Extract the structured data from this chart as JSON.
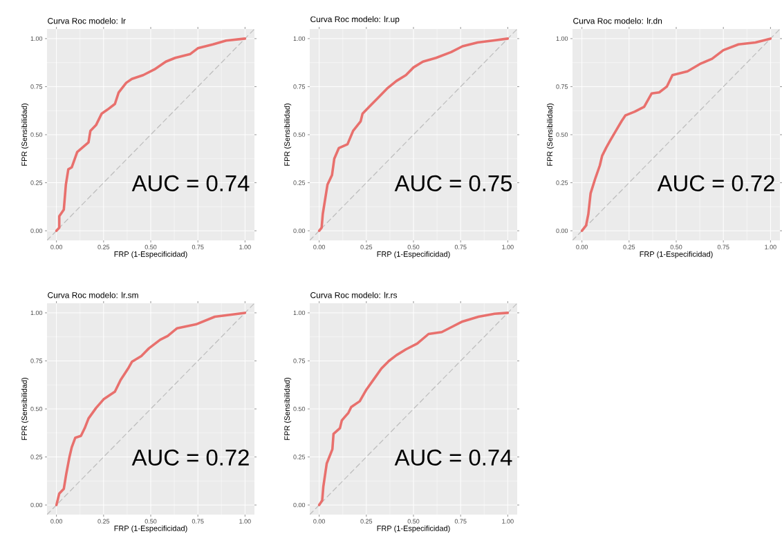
{
  "chart_data": [
    {
      "type": "line",
      "title": "Curva Roc modelo: lr",
      "xlabel": "FRP (1-Especificidad)",
      "ylabel": "FPR (Sensibilidad)",
      "annotations": [
        "AUC = 0.74"
      ],
      "xlim": [
        -0.05,
        1.05
      ],
      "ylim": [
        -0.05,
        1.05
      ],
      "grid": true,
      "xticks": [
        {
          "value": 0,
          "label": "0.00"
        },
        {
          "value": 0.25,
          "label": "0.25"
        },
        {
          "value": 0.5,
          "label": "0.50"
        },
        {
          "value": 0.75,
          "label": "0.75"
        },
        {
          "value": 1,
          "label": "1.00"
        }
      ],
      "yticks": [
        {
          "value": 0,
          "label": "0.00"
        },
        {
          "value": 0.25,
          "label": "0.25"
        },
        {
          "value": 0.5,
          "label": "0.50"
        },
        {
          "value": 0.75,
          "label": "0.75"
        },
        {
          "value": 1,
          "label": "1.00"
        }
      ],
      "series": [
        {
          "color": "#bebebe",
          "line_style": "dashed",
          "x": [
            -0.05,
            1.05
          ],
          "values": [
            -0.05,
            1.05
          ]
        },
        {
          "color": "#e8706d",
          "line_style": "solid",
          "x": [
            0,
            0.015,
            0.015,
            0.039,
            0.05,
            0.063,
            0.081,
            0.11,
            0.17,
            0.18,
            0.21,
            0.24,
            0.27,
            0.31,
            0.33,
            0.37,
            0.4,
            0.46,
            0.52,
            0.58,
            0.63,
            0.71,
            0.75,
            0.83,
            0.9,
            1
          ],
          "values": [
            0,
            0.016,
            0.076,
            0.11,
            0.24,
            0.32,
            0.33,
            0.41,
            0.46,
            0.52,
            0.55,
            0.61,
            0.63,
            0.66,
            0.72,
            0.77,
            0.79,
            0.81,
            0.84,
            0.88,
            0.9,
            0.92,
            0.95,
            0.97,
            0.99,
            1
          ]
        }
      ]
    },
    {
      "type": "line",
      "title": "Curva Roc modelo: lr.up",
      "xlabel": "FRP (1-Especificidad)",
      "ylabel": "FPR (Sensibilidad)",
      "annotations": [
        "AUC = 0.75"
      ],
      "xlim": [
        -0.05,
        1.05
      ],
      "ylim": [
        -0.05,
        1.05
      ],
      "grid": true,
      "xticks": [
        {
          "value": 0,
          "label": "0.00"
        },
        {
          "value": 0.25,
          "label": "0.25"
        },
        {
          "value": 0.5,
          "label": "0.50"
        },
        {
          "value": 0.75,
          "label": "0.75"
        },
        {
          "value": 1,
          "label": "1.00"
        }
      ],
      "yticks": [
        {
          "value": 0,
          "label": "0.00"
        },
        {
          "value": 0.25,
          "label": "0.25"
        },
        {
          "value": 0.5,
          "label": "0.50"
        },
        {
          "value": 0.75,
          "label": "0.75"
        },
        {
          "value": 1,
          "label": "1.00"
        }
      ],
      "series": [
        {
          "color": "#bebebe",
          "line_style": "dashed",
          "x": [
            -0.05,
            1.05
          ],
          "values": [
            -0.05,
            1.05
          ]
        },
        {
          "color": "#e8706d",
          "line_style": "solid",
          "x": [
            0,
            0.013,
            0.019,
            0.044,
            0.068,
            0.08,
            0.104,
            0.15,
            0.18,
            0.22,
            0.23,
            0.27,
            0.31,
            0.36,
            0.41,
            0.46,
            0.5,
            0.55,
            0.62,
            0.7,
            0.76,
            0.84,
            0.92,
            1
          ],
          "values": [
            0,
            0.016,
            0.087,
            0.24,
            0.29,
            0.375,
            0.43,
            0.45,
            0.52,
            0.57,
            0.61,
            0.65,
            0.69,
            0.74,
            0.78,
            0.81,
            0.85,
            0.88,
            0.9,
            0.93,
            0.96,
            0.98,
            0.99,
            1
          ]
        }
      ]
    },
    {
      "type": "line",
      "title": "Curva Roc modelo: lr.dn",
      "xlabel": "FRP (1-Especificidad)",
      "ylabel": "FPR (Sensibilidad)",
      "annotations": [
        "AUC = 0.72"
      ],
      "xlim": [
        -0.05,
        1.05
      ],
      "ylim": [
        -0.05,
        1.05
      ],
      "grid": true,
      "xticks": [
        {
          "value": 0,
          "label": "0.00"
        },
        {
          "value": 0.25,
          "label": "0.25"
        },
        {
          "value": 0.5,
          "label": "0.50"
        },
        {
          "value": 0.75,
          "label": "0.75"
        },
        {
          "value": 1,
          "label": "1.00"
        }
      ],
      "yticks": [
        {
          "value": 0,
          "label": "0.00"
        },
        {
          "value": 0.25,
          "label": "0.25"
        },
        {
          "value": 0.5,
          "label": "0.50"
        },
        {
          "value": 0.75,
          "label": "0.75"
        },
        {
          "value": 1,
          "label": "1.00"
        }
      ],
      "series": [
        {
          "color": "#bebebe",
          "line_style": "dashed",
          "x": [
            -0.05,
            1.05
          ],
          "values": [
            -0.05,
            1.05
          ]
        },
        {
          "color": "#e8706d",
          "line_style": "solid",
          "x": [
            0,
            0.022,
            0.034,
            0.046,
            0.07,
            0.095,
            0.107,
            0.13,
            0.15,
            0.18,
            0.21,
            0.23,
            0.28,
            0.33,
            0.37,
            0.41,
            0.45,
            0.48,
            0.56,
            0.63,
            0.69,
            0.75,
            0.83,
            0.92,
            1
          ],
          "values": [
            0,
            0.028,
            0.087,
            0.195,
            0.27,
            0.34,
            0.39,
            0.435,
            0.47,
            0.52,
            0.57,
            0.6,
            0.62,
            0.645,
            0.715,
            0.72,
            0.75,
            0.81,
            0.83,
            0.87,
            0.895,
            0.94,
            0.97,
            0.98,
            1
          ]
        }
      ]
    },
    {
      "type": "line",
      "title": "Curva Roc modelo: lr.sm",
      "xlabel": "FRP (1-Especificidad)",
      "ylabel": "FPR (Sensibilidad)",
      "annotations": [
        "AUC = 0.72"
      ],
      "xlim": [
        -0.05,
        1.05
      ],
      "ylim": [
        -0.05,
        1.05
      ],
      "grid": true,
      "xticks": [
        {
          "value": 0,
          "label": "0.00"
        },
        {
          "value": 0.25,
          "label": "0.25"
        },
        {
          "value": 0.5,
          "label": "0.50"
        },
        {
          "value": 0.75,
          "label": "0.75"
        },
        {
          "value": 1,
          "label": "1.00"
        }
      ],
      "yticks": [
        {
          "value": 0,
          "label": "0.00"
        },
        {
          "value": 0.25,
          "label": "0.25"
        },
        {
          "value": 0.5,
          "label": "0.50"
        },
        {
          "value": 0.75,
          "label": "0.75"
        },
        {
          "value": 1,
          "label": "1.00"
        }
      ],
      "series": [
        {
          "color": "#bebebe",
          "line_style": "dashed",
          "x": [
            -0.05,
            1.05
          ],
          "values": [
            -0.05,
            1.05
          ]
        },
        {
          "color": "#e8706d",
          "line_style": "solid",
          "x": [
            0,
            0.015,
            0.039,
            0.051,
            0.069,
            0.081,
            0.1,
            0.13,
            0.15,
            0.17,
            0.21,
            0.25,
            0.31,
            0.34,
            0.38,
            0.4,
            0.45,
            0.49,
            0.55,
            0.59,
            0.64,
            0.74,
            0.84,
            1
          ],
          "values": [
            0,
            0.06,
            0.084,
            0.156,
            0.25,
            0.3,
            0.35,
            0.36,
            0.4,
            0.45,
            0.505,
            0.55,
            0.59,
            0.65,
            0.71,
            0.745,
            0.775,
            0.815,
            0.86,
            0.88,
            0.92,
            0.94,
            0.98,
            1
          ]
        }
      ]
    },
    {
      "type": "line",
      "title": "Curva Roc modelo: lr.rs",
      "xlabel": "FRP (1-Especificidad)",
      "ylabel": "FPR (Sensibilidad)",
      "annotations": [
        "AUC = 0.74"
      ],
      "xlim": [
        -0.05,
        1.05
      ],
      "ylim": [
        -0.05,
        1.05
      ],
      "grid": true,
      "xticks": [
        {
          "value": 0,
          "label": "0.00"
        },
        {
          "value": 0.25,
          "label": "0.25"
        },
        {
          "value": 0.5,
          "label": "0.50"
        },
        {
          "value": 0.75,
          "label": "0.75"
        },
        {
          "value": 1,
          "label": "1.00"
        }
      ],
      "yticks": [
        {
          "value": 0,
          "label": "0.00"
        },
        {
          "value": 0.25,
          "label": "0.25"
        },
        {
          "value": 0.5,
          "label": "0.50"
        },
        {
          "value": 0.75,
          "label": "0.75"
        },
        {
          "value": 1,
          "label": "1.00"
        }
      ],
      "series": [
        {
          "color": "#bebebe",
          "line_style": "dashed",
          "x": [
            -0.05,
            1.05
          ],
          "values": [
            -0.05,
            1.05
          ]
        },
        {
          "color": "#e8706d",
          "line_style": "solid",
          "x": [
            0,
            0.016,
            0.022,
            0.04,
            0.07,
            0.076,
            0.11,
            0.12,
            0.155,
            0.17,
            0.215,
            0.25,
            0.29,
            0.33,
            0.37,
            0.41,
            0.46,
            0.52,
            0.58,
            0.65,
            0.7,
            0.76,
            0.845,
            0.93,
            1
          ],
          "values": [
            0,
            0.024,
            0.096,
            0.216,
            0.29,
            0.37,
            0.4,
            0.44,
            0.48,
            0.51,
            0.54,
            0.6,
            0.655,
            0.71,
            0.75,
            0.78,
            0.81,
            0.84,
            0.89,
            0.9,
            0.925,
            0.955,
            0.98,
            0.995,
            1
          ]
        }
      ]
    }
  ]
}
